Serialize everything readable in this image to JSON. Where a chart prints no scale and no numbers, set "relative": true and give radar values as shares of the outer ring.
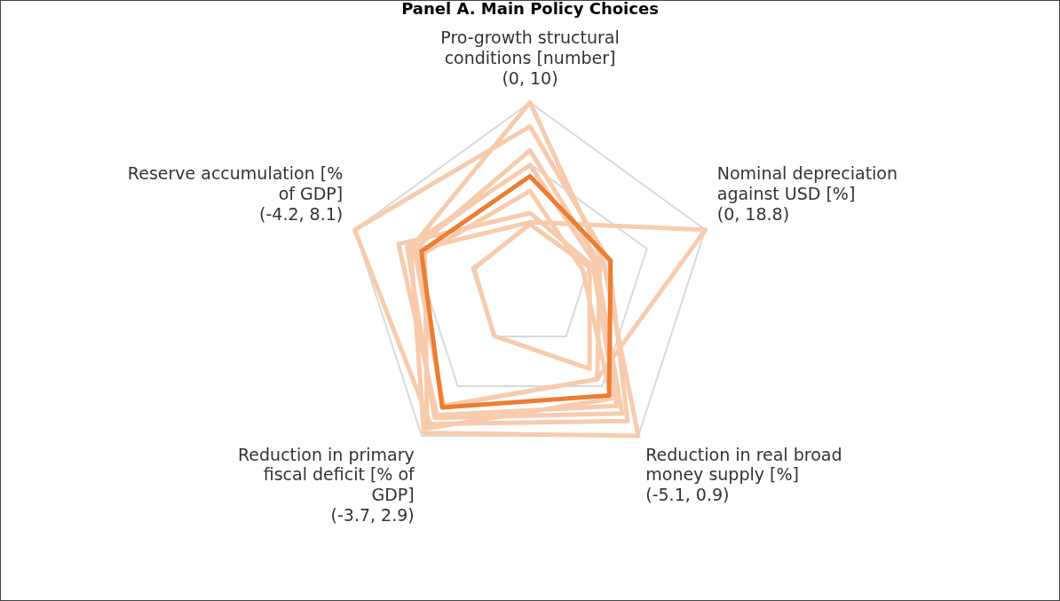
{
  "chart_data": {
    "type": "radar",
    "title": "Panel A. Main Policy Choices",
    "relative": true,
    "grid": true,
    "legend": false,
    "categories": [
      "Pro-growth structural conditions [number] (0, 10)",
      "Nominal depreciation against USD [%] (0, 18.8)",
      "Reduction in real broad money supply [%] (-5.1, 0.9)",
      "Reduction in primary fiscal deficit [% of GDP] (-3.7, 2.9)",
      "Reserve accumulation [% of GDP] (-4.2, 8.1)"
    ],
    "series": [
      {
        "color": "#f8cbad",
        "values": [
          1.0,
          0.42,
          1.0,
          0.98,
          0.68
        ]
      },
      {
        "color": "#f8cbad",
        "values": [
          0.87,
          0.45,
          0.9,
          0.92,
          1.0
        ]
      },
      {
        "color": "#f8cbad",
        "values": [
          0.35,
          1.0,
          0.62,
          0.8,
          0.65
        ]
      },
      {
        "color": "#f8cbad",
        "values": [
          0.34,
          0.34,
          0.55,
          0.33,
          0.32
        ]
      },
      {
        "color": "#f8cbad",
        "values": [
          0.74,
          0.4,
          0.62,
          0.8,
          0.66
        ]
      },
      {
        "color": "#f8cbad",
        "values": [
          0.66,
          0.38,
          0.85,
          0.88,
          0.7
        ]
      },
      {
        "color": "#f8cbad",
        "values": [
          0.52,
          0.3,
          0.75,
          0.95,
          0.6
        ]
      },
      {
        "color": "#f8cbad",
        "values": [
          0.4,
          0.36,
          0.8,
          0.86,
          0.75
        ]
      },
      {
        "color": "#ed7d31",
        "values": [
          0.6,
          0.46,
          0.73,
          0.81,
          0.62
        ]
      }
    ]
  }
}
